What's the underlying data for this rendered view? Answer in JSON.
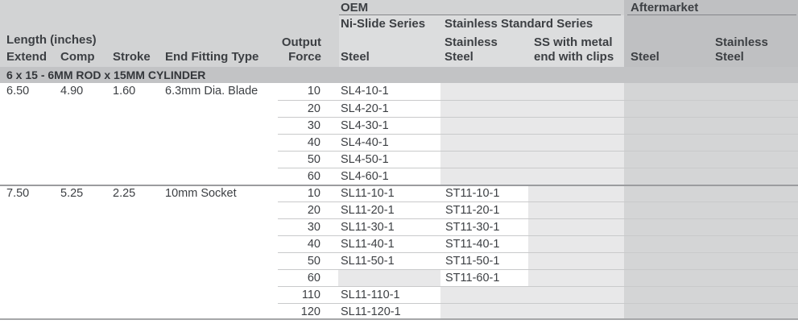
{
  "colors": {
    "header_bg": "#d2d3d4",
    "oem_header_bg": "#dcddde",
    "aftermarket_header_bg": "#bfc0c2",
    "section_bg": "#c2c3c5",
    "oem_empty_cell_bg": "#e8e8e9",
    "aftermarket_cell_bg": "#d4d5d6",
    "row_line": "#c9cacb",
    "group_line": "#9b9c9f",
    "underline": "#85868a",
    "bottom_border": "#a6a7a9",
    "text": "#3c3f43"
  },
  "header": {
    "oem_label": "OEM",
    "aftermarket_label": "Aftermarket",
    "nislide_series_label": "Ni-Slide Series",
    "stainless_series_label": "Stainless Standard Series",
    "length_group_label": "Length (inches)",
    "extend_label": "Extend",
    "comp_label": "Comp",
    "stroke_label": "Stroke",
    "end_fitting_label": "End Fitting Type",
    "output_force_label": [
      "Output",
      "Force"
    ],
    "oem_steel_label": "Steel",
    "oem_stainless_label": [
      "Stainless",
      "Steel"
    ],
    "ss_clips_label": [
      "SS with metal",
      "end with clips"
    ],
    "aftermarket_steel_label": "Steel",
    "aftermarket_stainless_label": [
      "Stainless",
      "Steel"
    ]
  },
  "section_title": "6 x 15 - 6MM ROD x 15MM CYLINDER",
  "rows": [
    {
      "extend": "6.50",
      "comp": "4.90",
      "stroke": "1.60",
      "fitting": "6.3mm Dia. Blade",
      "force": "10",
      "oem_steel": "SL4-10-1",
      "oem_stainless": "",
      "ss_clips": "",
      "am_steel": "",
      "am_stainless": ""
    },
    {
      "extend": "",
      "comp": "",
      "stroke": "",
      "fitting": "",
      "force": "20",
      "oem_steel": "SL4-20-1",
      "oem_stainless": "",
      "ss_clips": "",
      "am_steel": "",
      "am_stainless": ""
    },
    {
      "extend": "",
      "comp": "",
      "stroke": "",
      "fitting": "",
      "force": "30",
      "oem_steel": "SL4-30-1",
      "oem_stainless": "",
      "ss_clips": "",
      "am_steel": "",
      "am_stainless": ""
    },
    {
      "extend": "",
      "comp": "",
      "stroke": "",
      "fitting": "",
      "force": "40",
      "oem_steel": "SL4-40-1",
      "oem_stainless": "",
      "ss_clips": "",
      "am_steel": "",
      "am_stainless": ""
    },
    {
      "extend": "",
      "comp": "",
      "stroke": "",
      "fitting": "",
      "force": "50",
      "oem_steel": "SL4-50-1",
      "oem_stainless": "",
      "ss_clips": "",
      "am_steel": "",
      "am_stainless": ""
    },
    {
      "extend": "",
      "comp": "",
      "stroke": "",
      "fitting": "",
      "force": "60",
      "oem_steel": "SL4-60-1",
      "oem_stainless": "",
      "ss_clips": "",
      "am_steel": "",
      "am_stainless": ""
    },
    {
      "extend": "7.50",
      "comp": "5.25",
      "stroke": "2.25",
      "fitting": "10mm Socket",
      "force": "10",
      "oem_steel": "SL11-10-1",
      "oem_stainless": "ST11-10-1",
      "ss_clips": "",
      "am_steel": "",
      "am_stainless": ""
    },
    {
      "extend": "",
      "comp": "",
      "stroke": "",
      "fitting": "",
      "force": "20",
      "oem_steel": "SL11-20-1",
      "oem_stainless": "ST11-20-1",
      "ss_clips": "",
      "am_steel": "",
      "am_stainless": ""
    },
    {
      "extend": "",
      "comp": "",
      "stroke": "",
      "fitting": "",
      "force": "30",
      "oem_steel": "SL11-30-1",
      "oem_stainless": "ST11-30-1",
      "ss_clips": "",
      "am_steel": "",
      "am_stainless": ""
    },
    {
      "extend": "",
      "comp": "",
      "stroke": "",
      "fitting": "",
      "force": "40",
      "oem_steel": "SL11-40-1",
      "oem_stainless": "ST11-40-1",
      "ss_clips": "",
      "am_steel": "",
      "am_stainless": ""
    },
    {
      "extend": "",
      "comp": "",
      "stroke": "",
      "fitting": "",
      "force": "50",
      "oem_steel": "SL11-50-1",
      "oem_stainless": "ST11-50-1",
      "ss_clips": "",
      "am_steel": "",
      "am_stainless": ""
    },
    {
      "extend": "",
      "comp": "",
      "stroke": "",
      "fitting": "",
      "force": "60",
      "oem_steel": "",
      "oem_stainless": "ST11-60-1",
      "ss_clips": "",
      "am_steel": "",
      "am_stainless": ""
    },
    {
      "extend": "",
      "comp": "",
      "stroke": "",
      "fitting": "",
      "force": "110",
      "oem_steel": "SL11-110-1",
      "oem_stainless": "",
      "ss_clips": "",
      "am_steel": "",
      "am_stainless": ""
    },
    {
      "extend": "",
      "comp": "",
      "stroke": "",
      "fitting": "",
      "force": "120",
      "oem_steel": "SL11-120-1",
      "oem_stainless": "",
      "ss_clips": "",
      "am_steel": "",
      "am_stainless": ""
    }
  ]
}
